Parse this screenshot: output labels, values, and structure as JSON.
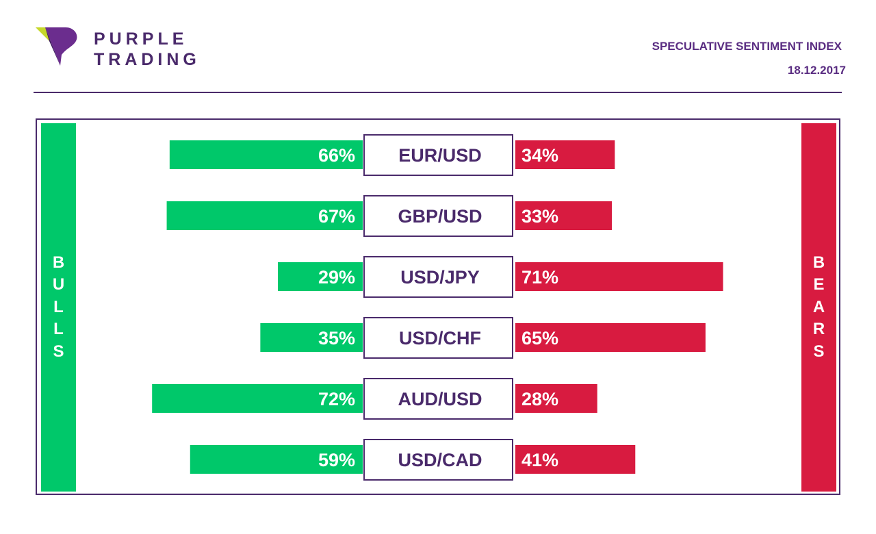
{
  "brand": {
    "line1": "PURPLE",
    "line2": "TRADING"
  },
  "header": {
    "title": "SPECULATIVE SENTIMENT INDEX",
    "date": "18.12.2017"
  },
  "sides": {
    "bulls": "BULLS",
    "bears": "BEARS"
  },
  "colors": {
    "bulls": "#00c86a",
    "bears": "#d81b40",
    "accent": "#4a2a6b"
  },
  "chart_data": {
    "type": "bar",
    "title": "SPECULATIVE SENTIMENT INDEX",
    "categories": [
      "EUR/USD",
      "GBP/USD",
      "USD/JPY",
      "USD/CHF",
      "AUD/USD",
      "USD/CAD"
    ],
    "series": [
      {
        "name": "BULLS",
        "values": [
          66,
          67,
          29,
          35,
          72,
          59
        ]
      },
      {
        "name": "BEARS",
        "values": [
          34,
          33,
          71,
          65,
          28,
          41
        ]
      }
    ],
    "unit": "%"
  }
}
